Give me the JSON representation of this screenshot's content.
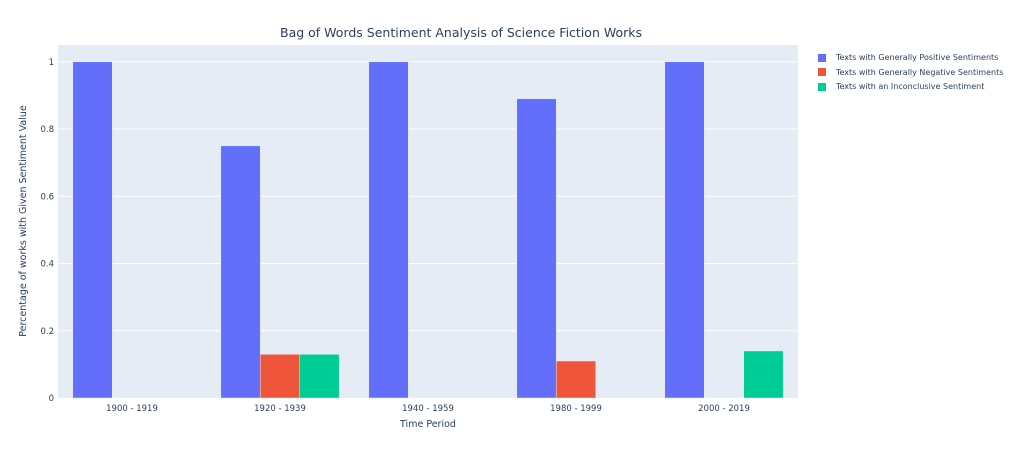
{
  "chart_data": {
    "type": "bar",
    "title": "Bag of Words Sentiment Analysis of Science Fiction Works",
    "xlabel": "Time Period",
    "ylabel": "Percentage of works with Given Sentiment Value",
    "categories": [
      "1900 - 1919",
      "1920 - 1939",
      "1940 - 1959",
      "1980 - 1999",
      "2000 - 2019"
    ],
    "series": [
      {
        "name": "Texts with Generally Positive Sentiments",
        "color": "#636efa",
        "values": [
          1,
          0.75,
          1,
          0.89,
          1
        ]
      },
      {
        "name": "Texts with Generally Negative Sentiments",
        "color": "#ef553b",
        "values": [
          0,
          0.13,
          0,
          0.11,
          0
        ]
      },
      {
        "name": "Texts with an Inconclusive Sentiment",
        "color": "#00cc96",
        "values": [
          0,
          0.13,
          0,
          0,
          0.14
        ]
      }
    ],
    "ylim": [
      0,
      1.05
    ],
    "yticks": [
      0,
      0.2,
      0.4,
      0.6,
      0.8,
      1
    ],
    "ytick_labels": [
      "0",
      "0.2",
      "0.4",
      "0.6",
      "0.8",
      "1"
    ],
    "grid": true,
    "plot_background": "#e5ecf6",
    "legend_position": "top-right, outside plot"
  }
}
